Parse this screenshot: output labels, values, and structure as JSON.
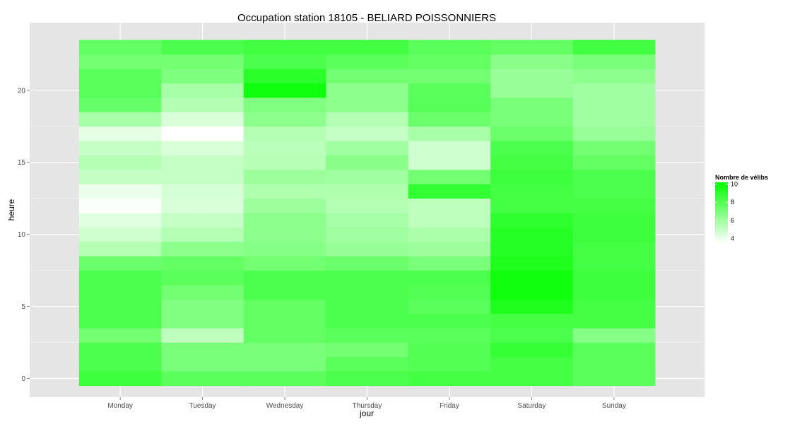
{
  "chart_data": {
    "type": "heatmap",
    "title": "Occupation station 18105 - BELIARD POISSONNIERS",
    "xlabel": "jour",
    "ylabel": "heure",
    "x_categories": [
      "Monday",
      "Tuesday",
      "Wednesday",
      "Thursday",
      "Friday",
      "Saturday",
      "Sunday"
    ],
    "y_hours": [
      0,
      1,
      2,
      3,
      4,
      5,
      6,
      7,
      8,
      9,
      10,
      11,
      12,
      13,
      14,
      15,
      16,
      17,
      18,
      19,
      20,
      21,
      22,
      23
    ],
    "y_ticks": [
      0,
      5,
      10,
      15,
      20
    ],
    "y_tick_labels": [
      "0",
      "5",
      "10",
      "15",
      "20"
    ],
    "ylim": [
      -1.3,
      24.7
    ],
    "grid": true,
    "legend": {
      "title": "Nombre de vélibs",
      "position": "right",
      "ticks": [
        4,
        6,
        8,
        10
      ],
      "tick_labels": [
        "4",
        "6",
        "8",
        "10"
      ],
      "range": [
        3.5,
        10.2
      ],
      "low_color": "#ffffff",
      "high_color": "#00ff00"
    },
    "values": {
      "Monday": [
        8.6,
        8.2,
        8.2,
        7.2,
        8.2,
        8.2,
        8.2,
        8.2,
        7.4,
        5.5,
        4.8,
        4.3,
        3.6,
        4.0,
        5.0,
        5.5,
        5.0,
        4.2,
        5.8,
        7.5,
        7.8,
        7.8,
        7.2,
        7.6
      ],
      "Tuesday": [
        7.8,
        7.0,
        7.0,
        5.2,
        6.8,
        6.8,
        7.2,
        7.8,
        7.6,
        6.5,
        5.5,
        5.0,
        4.5,
        4.6,
        5.0,
        5.0,
        4.5,
        3.5,
        4.5,
        5.5,
        5.8,
        6.9,
        7.2,
        8.2
      ],
      "Wednesday": [
        7.8,
        7.0,
        7.0,
        7.6,
        7.6,
        7.6,
        8.2,
        8.2,
        7.2,
        6.7,
        6.5,
        6.5,
        6.1,
        5.6,
        6.1,
        5.4,
        5.3,
        5.5,
        6.5,
        6.8,
        9.8,
        9.1,
        8.2,
        8.5
      ],
      "Thursday": [
        8.2,
        7.8,
        7.2,
        7.8,
        8.2,
        8.2,
        8.2,
        8.2,
        7.4,
        6.2,
        6.0,
        5.8,
        5.5,
        5.6,
        6.0,
        6.6,
        6.0,
        5.0,
        5.5,
        6.5,
        6.5,
        7.2,
        7.8,
        8.5
      ],
      "Friday": [
        8.4,
        8.0,
        8.0,
        7.8,
        8.2,
        7.8,
        8.0,
        8.2,
        7.0,
        6.1,
        5.7,
        5.2,
        5.2,
        8.9,
        7.2,
        4.8,
        4.8,
        5.8,
        7.4,
        7.9,
        7.8,
        7.2,
        7.6,
        7.8
      ],
      "Saturday": [
        8.4,
        8.4,
        8.8,
        8.2,
        8.4,
        9.4,
        9.8,
        9.8,
        9.4,
        9.2,
        9.2,
        9.0,
        8.4,
        8.4,
        8.6,
        8.4,
        8.2,
        7.4,
        7.0,
        7.0,
        6.2,
        6.2,
        6.6,
        7.6
      ],
      "Sunday": [
        7.8,
        7.8,
        7.8,
        6.7,
        8.4,
        8.4,
        8.6,
        8.6,
        8.4,
        8.4,
        8.6,
        8.6,
        8.4,
        8.2,
        8.2,
        7.6,
        7.2,
        6.2,
        6.0,
        6.0,
        6.0,
        6.5,
        7.0,
        8.5
      ]
    }
  }
}
